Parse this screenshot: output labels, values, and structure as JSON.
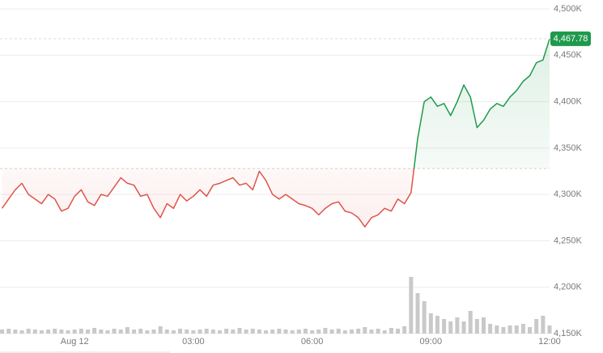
{
  "chart_data": {
    "type": "line",
    "categories": [
      null,
      null,
      null,
      null,
      null,
      null,
      null,
      null,
      null,
      null,
      null,
      "Aug 12",
      null,
      null,
      null,
      null,
      null,
      null,
      null,
      null,
      null,
      null,
      null,
      null,
      null,
      null,
      null,
      null,
      null,
      "03:00",
      null,
      null,
      null,
      null,
      null,
      null,
      null,
      null,
      null,
      null,
      null,
      null,
      null,
      null,
      null,
      null,
      null,
      "06:00",
      null,
      null,
      null,
      null,
      null,
      null,
      null,
      null,
      null,
      null,
      null,
      null,
      null,
      null,
      null,
      null,
      null,
      "09:00",
      null,
      null,
      null,
      null,
      null,
      null,
      null,
      null,
      null,
      null,
      null,
      null,
      null,
      null,
      null,
      null,
      null,
      "12:00"
    ],
    "values": [
      4285,
      4295,
      4305,
      4312,
      4300,
      4295,
      4290,
      4300,
      4295,
      4282,
      4285,
      4298,
      4305,
      4292,
      4288,
      4300,
      4298,
      4308,
      4318,
      4312,
      4310,
      4298,
      4300,
      4285,
      4275,
      4290,
      4285,
      4300,
      4293,
      4298,
      4305,
      4298,
      4310,
      4312,
      4315,
      4318,
      4310,
      4312,
      4305,
      4325,
      4315,
      4300,
      4295,
      4300,
      4295,
      4290,
      4288,
      4285,
      4278,
      4285,
      4290,
      4292,
      4282,
      4280,
      4275,
      4265,
      4275,
      4278,
      4285,
      4282,
      4295,
      4290,
      4302,
      4360,
      4400,
      4405,
      4395,
      4398,
      4385,
      4400,
      4418,
      4405,
      4372,
      4380,
      4392,
      4398,
      4395,
      4405,
      4412,
      4422,
      4428,
      4442,
      4445,
      4467.78
    ],
    "value_labels": [
      null,
      null,
      null,
      null,
      null,
      null,
      null,
      null,
      null,
      null,
      null,
      null,
      null,
      null,
      null,
      null,
      null,
      null,
      null,
      null,
      null,
      null,
      null,
      null,
      null,
      null,
      null,
      null,
      null,
      null,
      null,
      null,
      null,
      null,
      null,
      null,
      null,
      null,
      null,
      null,
      null,
      null,
      null,
      null,
      null,
      null,
      null,
      null,
      null,
      null,
      null,
      null,
      null,
      null,
      null,
      null,
      null,
      null,
      null,
      null,
      null,
      null,
      null,
      null,
      null,
      null,
      null,
      null,
      null,
      null,
      null,
      null,
      null,
      null,
      null,
      null,
      null,
      null,
      null,
      null,
      null,
      null,
      null,
      "4,467.78"
    ],
    "reference": 4328,
    "up_color": "#1f9a4c",
    "down_color": "#e0534a",
    "volume": {
      "color": "#c9c9c9",
      "values": [
        5,
        6,
        5,
        4,
        6,
        5,
        4,
        5,
        6,
        5,
        4,
        5,
        6,
        5,
        7,
        5,
        4,
        6,
        5,
        8,
        5,
        6,
        4,
        5,
        9,
        5,
        4,
        6,
        5,
        4,
        5,
        6,
        5,
        4,
        6,
        5,
        7,
        5,
        6,
        5,
        4,
        5,
        6,
        5,
        4,
        5,
        6,
        4,
        5,
        7,
        5,
        6,
        4,
        5,
        6,
        8,
        5,
        6,
        4,
        7,
        6,
        9,
        70,
        50,
        40,
        25,
        22,
        18,
        15,
        20,
        15,
        28,
        18,
        20,
        12,
        10,
        8,
        10,
        10,
        12,
        8,
        18,
        22,
        10
      ]
    },
    "ylim": [
      4150,
      4500
    ],
    "yticks": [
      {
        "value": 4150,
        "label": "4,150K"
      },
      {
        "value": 4200,
        "label": "4,200K"
      },
      {
        "value": 4250,
        "label": "4,250K"
      },
      {
        "value": 4300,
        "label": "4,300K"
      },
      {
        "value": 4350,
        "label": "4,350K"
      },
      {
        "value": 4400,
        "label": "4,400K"
      },
      {
        "value": 4450,
        "label": "4,450K"
      },
      {
        "value": 4500,
        "label": "4,500K"
      }
    ],
    "grid": true
  }
}
